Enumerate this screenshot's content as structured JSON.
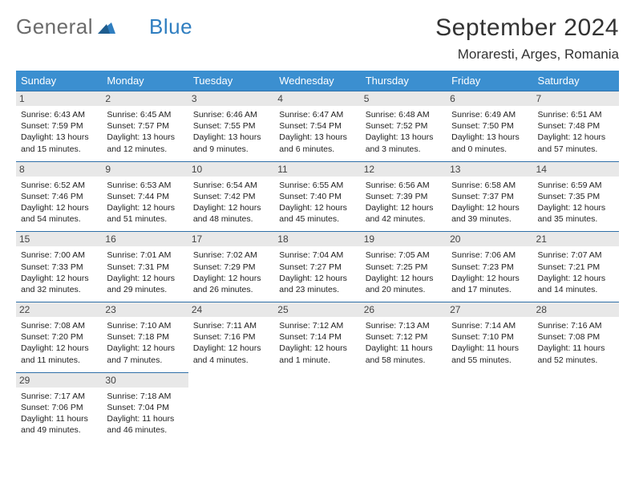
{
  "brand": {
    "general": "General",
    "blue": "Blue"
  },
  "title": "September 2024",
  "location": "Moraresti, Arges, Romania",
  "colors": {
    "header_bg": "#3b8fd0",
    "header_text": "#ffffff",
    "daynum_bg": "#e8e8e8",
    "cell_border": "#2f6fa8",
    "logo_gray": "#6b6b6b",
    "logo_blue": "#2f7ec0"
  },
  "weekdays": [
    "Sunday",
    "Monday",
    "Tuesday",
    "Wednesday",
    "Thursday",
    "Friday",
    "Saturday"
  ],
  "weeks": [
    [
      {
        "day": "1",
        "sunrise": "Sunrise: 6:43 AM",
        "sunset": "Sunset: 7:59 PM",
        "daylight1": "Daylight: 13 hours",
        "daylight2": "and 15 minutes."
      },
      {
        "day": "2",
        "sunrise": "Sunrise: 6:45 AM",
        "sunset": "Sunset: 7:57 PM",
        "daylight1": "Daylight: 13 hours",
        "daylight2": "and 12 minutes."
      },
      {
        "day": "3",
        "sunrise": "Sunrise: 6:46 AM",
        "sunset": "Sunset: 7:55 PM",
        "daylight1": "Daylight: 13 hours",
        "daylight2": "and 9 minutes."
      },
      {
        "day": "4",
        "sunrise": "Sunrise: 6:47 AM",
        "sunset": "Sunset: 7:54 PM",
        "daylight1": "Daylight: 13 hours",
        "daylight2": "and 6 minutes."
      },
      {
        "day": "5",
        "sunrise": "Sunrise: 6:48 AM",
        "sunset": "Sunset: 7:52 PM",
        "daylight1": "Daylight: 13 hours",
        "daylight2": "and 3 minutes."
      },
      {
        "day": "6",
        "sunrise": "Sunrise: 6:49 AM",
        "sunset": "Sunset: 7:50 PM",
        "daylight1": "Daylight: 13 hours",
        "daylight2": "and 0 minutes."
      },
      {
        "day": "7",
        "sunrise": "Sunrise: 6:51 AM",
        "sunset": "Sunset: 7:48 PM",
        "daylight1": "Daylight: 12 hours",
        "daylight2": "and 57 minutes."
      }
    ],
    [
      {
        "day": "8",
        "sunrise": "Sunrise: 6:52 AM",
        "sunset": "Sunset: 7:46 PM",
        "daylight1": "Daylight: 12 hours",
        "daylight2": "and 54 minutes."
      },
      {
        "day": "9",
        "sunrise": "Sunrise: 6:53 AM",
        "sunset": "Sunset: 7:44 PM",
        "daylight1": "Daylight: 12 hours",
        "daylight2": "and 51 minutes."
      },
      {
        "day": "10",
        "sunrise": "Sunrise: 6:54 AM",
        "sunset": "Sunset: 7:42 PM",
        "daylight1": "Daylight: 12 hours",
        "daylight2": "and 48 minutes."
      },
      {
        "day": "11",
        "sunrise": "Sunrise: 6:55 AM",
        "sunset": "Sunset: 7:40 PM",
        "daylight1": "Daylight: 12 hours",
        "daylight2": "and 45 minutes."
      },
      {
        "day": "12",
        "sunrise": "Sunrise: 6:56 AM",
        "sunset": "Sunset: 7:39 PM",
        "daylight1": "Daylight: 12 hours",
        "daylight2": "and 42 minutes."
      },
      {
        "day": "13",
        "sunrise": "Sunrise: 6:58 AM",
        "sunset": "Sunset: 7:37 PM",
        "daylight1": "Daylight: 12 hours",
        "daylight2": "and 39 minutes."
      },
      {
        "day": "14",
        "sunrise": "Sunrise: 6:59 AM",
        "sunset": "Sunset: 7:35 PM",
        "daylight1": "Daylight: 12 hours",
        "daylight2": "and 35 minutes."
      }
    ],
    [
      {
        "day": "15",
        "sunrise": "Sunrise: 7:00 AM",
        "sunset": "Sunset: 7:33 PM",
        "daylight1": "Daylight: 12 hours",
        "daylight2": "and 32 minutes."
      },
      {
        "day": "16",
        "sunrise": "Sunrise: 7:01 AM",
        "sunset": "Sunset: 7:31 PM",
        "daylight1": "Daylight: 12 hours",
        "daylight2": "and 29 minutes."
      },
      {
        "day": "17",
        "sunrise": "Sunrise: 7:02 AM",
        "sunset": "Sunset: 7:29 PM",
        "daylight1": "Daylight: 12 hours",
        "daylight2": "and 26 minutes."
      },
      {
        "day": "18",
        "sunrise": "Sunrise: 7:04 AM",
        "sunset": "Sunset: 7:27 PM",
        "daylight1": "Daylight: 12 hours",
        "daylight2": "and 23 minutes."
      },
      {
        "day": "19",
        "sunrise": "Sunrise: 7:05 AM",
        "sunset": "Sunset: 7:25 PM",
        "daylight1": "Daylight: 12 hours",
        "daylight2": "and 20 minutes."
      },
      {
        "day": "20",
        "sunrise": "Sunrise: 7:06 AM",
        "sunset": "Sunset: 7:23 PM",
        "daylight1": "Daylight: 12 hours",
        "daylight2": "and 17 minutes."
      },
      {
        "day": "21",
        "sunrise": "Sunrise: 7:07 AM",
        "sunset": "Sunset: 7:21 PM",
        "daylight1": "Daylight: 12 hours",
        "daylight2": "and 14 minutes."
      }
    ],
    [
      {
        "day": "22",
        "sunrise": "Sunrise: 7:08 AM",
        "sunset": "Sunset: 7:20 PM",
        "daylight1": "Daylight: 12 hours",
        "daylight2": "and 11 minutes."
      },
      {
        "day": "23",
        "sunrise": "Sunrise: 7:10 AM",
        "sunset": "Sunset: 7:18 PM",
        "daylight1": "Daylight: 12 hours",
        "daylight2": "and 7 minutes."
      },
      {
        "day": "24",
        "sunrise": "Sunrise: 7:11 AM",
        "sunset": "Sunset: 7:16 PM",
        "daylight1": "Daylight: 12 hours",
        "daylight2": "and 4 minutes."
      },
      {
        "day": "25",
        "sunrise": "Sunrise: 7:12 AM",
        "sunset": "Sunset: 7:14 PM",
        "daylight1": "Daylight: 12 hours",
        "daylight2": "and 1 minute."
      },
      {
        "day": "26",
        "sunrise": "Sunrise: 7:13 AM",
        "sunset": "Sunset: 7:12 PM",
        "daylight1": "Daylight: 11 hours",
        "daylight2": "and 58 minutes."
      },
      {
        "day": "27",
        "sunrise": "Sunrise: 7:14 AM",
        "sunset": "Sunset: 7:10 PM",
        "daylight1": "Daylight: 11 hours",
        "daylight2": "and 55 minutes."
      },
      {
        "day": "28",
        "sunrise": "Sunrise: 7:16 AM",
        "sunset": "Sunset: 7:08 PM",
        "daylight1": "Daylight: 11 hours",
        "daylight2": "and 52 minutes."
      }
    ],
    [
      {
        "day": "29",
        "sunrise": "Sunrise: 7:17 AM",
        "sunset": "Sunset: 7:06 PM",
        "daylight1": "Daylight: 11 hours",
        "daylight2": "and 49 minutes."
      },
      {
        "day": "30",
        "sunrise": "Sunrise: 7:18 AM",
        "sunset": "Sunset: 7:04 PM",
        "daylight1": "Daylight: 11 hours",
        "daylight2": "and 46 minutes."
      },
      null,
      null,
      null,
      null,
      null
    ]
  ]
}
